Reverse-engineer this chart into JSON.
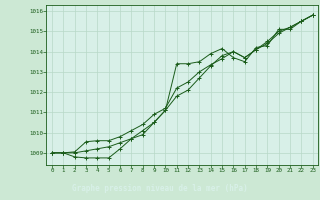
{
  "title": "Graphe pression niveau de la mer (hPa)",
  "bg_color": "#cce8d4",
  "plot_bg_color": "#d8f0e8",
  "grid_color": "#b8d8c8",
  "line_color": "#1a5c1a",
  "title_bg": "#1a5c1a",
  "title_fg": "#d8f0e8",
  "xlim": [
    -0.5,
    23.5
  ],
  "ylim": [
    1008.4,
    1016.3
  ],
  "yticks": [
    1009,
    1010,
    1011,
    1012,
    1013,
    1014,
    1015,
    1016
  ],
  "xticks": [
    0,
    1,
    2,
    3,
    4,
    5,
    6,
    7,
    8,
    9,
    10,
    11,
    12,
    13,
    14,
    15,
    16,
    17,
    18,
    19,
    20,
    21,
    22,
    23
  ],
  "series1": [
    1009.0,
    1009.0,
    1008.8,
    1008.75,
    1008.75,
    1008.75,
    1009.2,
    1009.7,
    1009.9,
    1010.5,
    1011.1,
    1013.4,
    1013.4,
    1013.5,
    1013.9,
    1014.15,
    1013.7,
    1013.5,
    1014.2,
    1014.3,
    1015.1,
    1015.1,
    1015.5,
    1015.8
  ],
  "series2": [
    1009.0,
    1009.0,
    1009.05,
    1009.55,
    1009.6,
    1009.6,
    1009.8,
    1010.1,
    1010.4,
    1010.9,
    1011.2,
    1012.2,
    1012.5,
    1013.0,
    1013.35,
    1013.65,
    1014.0,
    1013.7,
    1014.1,
    1014.5,
    1015.0,
    1015.2,
    1015.5,
    1015.8
  ],
  "series3": [
    1009.0,
    1009.0,
    1009.0,
    1009.1,
    1009.2,
    1009.3,
    1009.5,
    1009.7,
    1010.1,
    1010.5,
    1011.1,
    1011.8,
    1012.1,
    1012.7,
    1013.3,
    1013.8,
    1014.0,
    1013.7,
    1014.1,
    1014.4,
    1014.9,
    1015.2,
    1015.5,
    1015.8
  ]
}
